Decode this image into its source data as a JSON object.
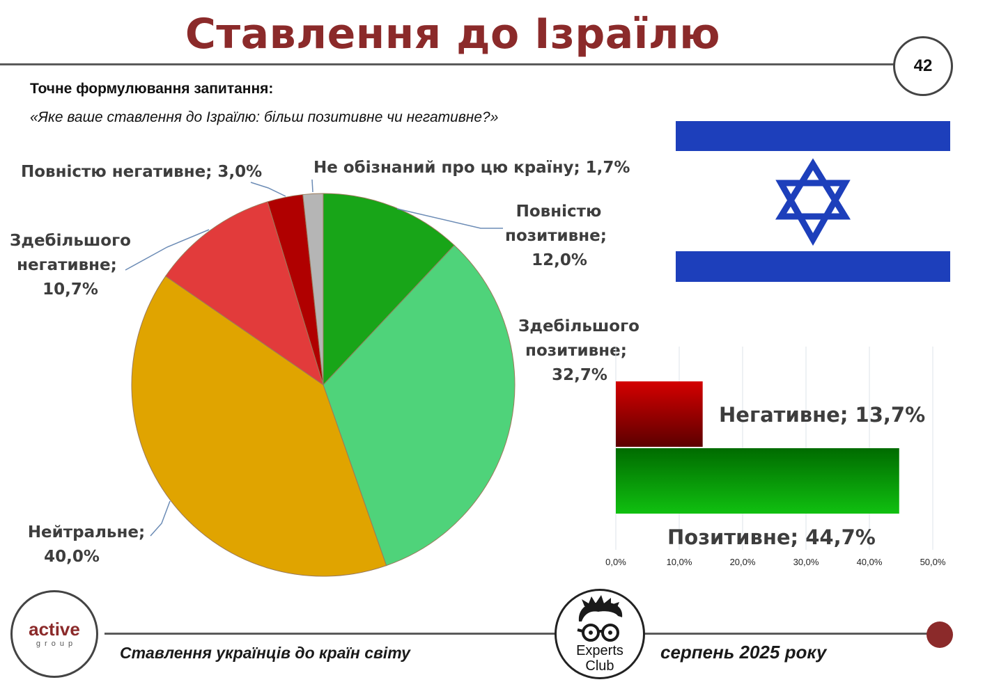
{
  "title": "Ставлення до Ізраїлю",
  "page_number": "42",
  "question_label": "Точне формулювання запитання:",
  "question_text": "«Яке ваше ставлення до Ізраїлю: більш позитивне чи негативне?»",
  "footer": {
    "left_text": "Ставлення українців до країн світу",
    "right_text": "серпень 2025 року",
    "logo_active_main": "active",
    "logo_active_sub": "group",
    "logo_experts_line1": "Experts",
    "logo_experts_line2": "Club"
  },
  "flag": {
    "stripe_color": "#1d3fbb",
    "star_color": "#1d3fbb",
    "icon": "star-of-david-icon"
  },
  "chart_data": [
    {
      "type": "pie",
      "slices": [
        {
          "name": "Повністю позитивне",
          "value": 12.0,
          "label_lines": [
            "Повністю",
            "позитивне;",
            "12,0%"
          ],
          "color": "#18a518"
        },
        {
          "name": "Здебільшого позитивне",
          "value": 32.7,
          "label_lines": [
            "Здебільшого",
            "позитивне;",
            "32,7%"
          ],
          "color": "#4fd37a"
        },
        {
          "name": "Нейтральне",
          "value": 40.0,
          "label_lines": [
            "Нейтральне;",
            "40,0%"
          ],
          "color": "#e0a400"
        },
        {
          "name": "Здебільшого негативне",
          "value": 10.7,
          "label_lines": [
            "Здебільшого",
            "негативне;",
            "10,7%"
          ],
          "color": "#e23b3b"
        },
        {
          "name": "Повністю негативне",
          "value": 3.0,
          "label_lines": [
            "Повністю негативне; 3,0%"
          ],
          "color": "#b00000"
        },
        {
          "name": "Не обізнаний про цю країну",
          "value": 1.7,
          "label_lines": [
            "Не обізнаний про цю країну; 1,7%"
          ],
          "color": "#b5b5b5"
        }
      ]
    },
    {
      "type": "bar",
      "orientation": "horizontal",
      "categories": [
        "Негативне",
        "Позитивне"
      ],
      "values": [
        13.7,
        44.7
      ],
      "labels": [
        "Негативне; 13,7%",
        "Позитивне; 44,7%"
      ],
      "colors": [
        "#c00000",
        "#0fae0f"
      ],
      "xlim": [
        0,
        50
      ],
      "ticks": [
        "0,0%",
        "10,0%",
        "20,0%",
        "30,0%",
        "40,0%",
        "50,0%"
      ],
      "grid": true
    }
  ]
}
